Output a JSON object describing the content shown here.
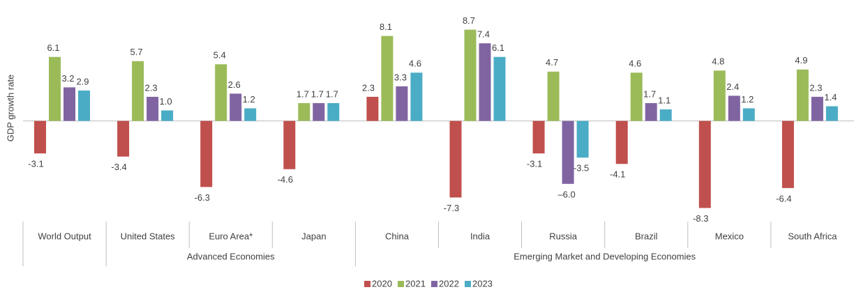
{
  "chart_data": {
    "type": "bar",
    "y_label": "GDP growth rate",
    "categories": [
      "World Output",
      "United States",
      "Euro Area*",
      "Japan",
      "China",
      "India",
      "Russia",
      "Brazil",
      "Mexico",
      "South Africa"
    ],
    "groups": [
      {
        "label": "Advanced Economies",
        "start": 1,
        "end": 3
      },
      {
        "label": "Emerging Market and Developing Economies",
        "start": 4,
        "end": 9
      }
    ],
    "series": [
      {
        "name": "2020",
        "color": "#c0504d",
        "values": [
          -3.1,
          -3.4,
          -6.3,
          -4.6,
          2.3,
          -7.3,
          -3.1,
          -4.1,
          -8.3,
          -6.4
        ],
        "value_labels": [
          "-3.1",
          "-3.4",
          "-6.3",
          "-4.6",
          "2.3",
          "-7.3",
          "-3.1",
          "-4.1",
          "-8.3",
          "-6.4"
        ]
      },
      {
        "name": "2021",
        "color": "#9bbb59",
        "values": [
          6.1,
          5.7,
          5.4,
          1.7,
          8.1,
          8.7,
          4.7,
          4.6,
          4.8,
          4.9
        ],
        "value_labels": [
          "6.1",
          "5.7",
          "5.4",
          "1.7",
          "8.1",
          "8.7",
          "4.7",
          "4.6",
          "4.8",
          "4.9"
        ]
      },
      {
        "name": "2022",
        "color": "#8064a2",
        "values": [
          3.2,
          2.3,
          2.6,
          1.7,
          3.3,
          7.4,
          -6.0,
          1.7,
          2.4,
          2.3
        ],
        "value_labels": [
          "3.2",
          "2.3",
          "2.6",
          "1.7",
          "3.3",
          "7.4",
          "–6.0",
          "1.7",
          "2.4",
          "2.3"
        ]
      },
      {
        "name": "2023",
        "color": "#4bacc6",
        "values": [
          2.9,
          1.0,
          1.2,
          1.7,
          4.6,
          6.1,
          -3.5,
          1.1,
          1.2,
          1.4
        ],
        "value_labels": [
          "2.9",
          "1.0",
          "1.2",
          "1.7",
          "4.6",
          "6.1",
          "-3.5",
          "1.1",
          "1.2",
          "1.4"
        ]
      }
    ],
    "ylim": [
      -9.6,
      10.2
    ],
    "legend": "bottom"
  }
}
